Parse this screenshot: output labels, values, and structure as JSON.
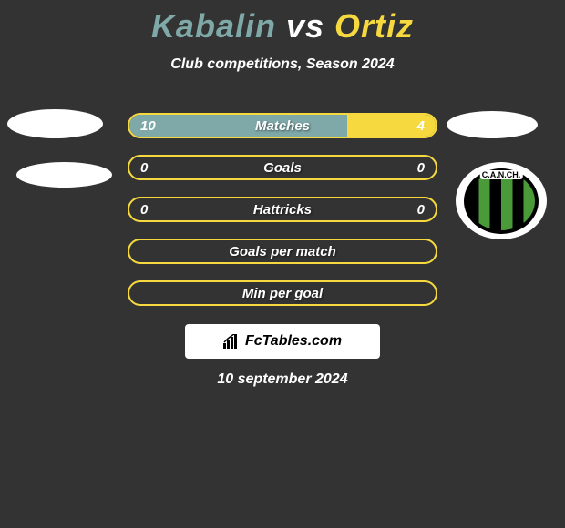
{
  "title": {
    "player1": "Kabalin",
    "vs": "vs",
    "player2": "Ortiz"
  },
  "subtitle": "Club competitions, Season 2024",
  "club_badge_text": "C.A.N.CH.",
  "stats": [
    {
      "label": "Matches",
      "left_val": "10",
      "right_val": "4",
      "left_pct": 71,
      "right_pct": 29,
      "show_vals": true
    },
    {
      "label": "Goals",
      "left_val": "0",
      "right_val": "0",
      "left_pct": 0,
      "right_pct": 0,
      "show_vals": true
    },
    {
      "label": "Hattricks",
      "left_val": "0",
      "right_val": "0",
      "left_pct": 0,
      "right_pct": 0,
      "show_vals": true
    },
    {
      "label": "Goals per match",
      "left_val": "",
      "right_val": "",
      "left_pct": 0,
      "right_pct": 0,
      "show_vals": false
    },
    {
      "label": "Min per goal",
      "left_val": "",
      "right_val": "",
      "left_pct": 0,
      "right_pct": 0,
      "show_vals": false
    }
  ],
  "colors": {
    "player1_color": "#7fa8a8",
    "player2_color": "#f5d93f",
    "background": "#333333",
    "bar_border": "#f5d93f"
  },
  "branding": "FcTables.com",
  "date": "10 september 2024"
}
